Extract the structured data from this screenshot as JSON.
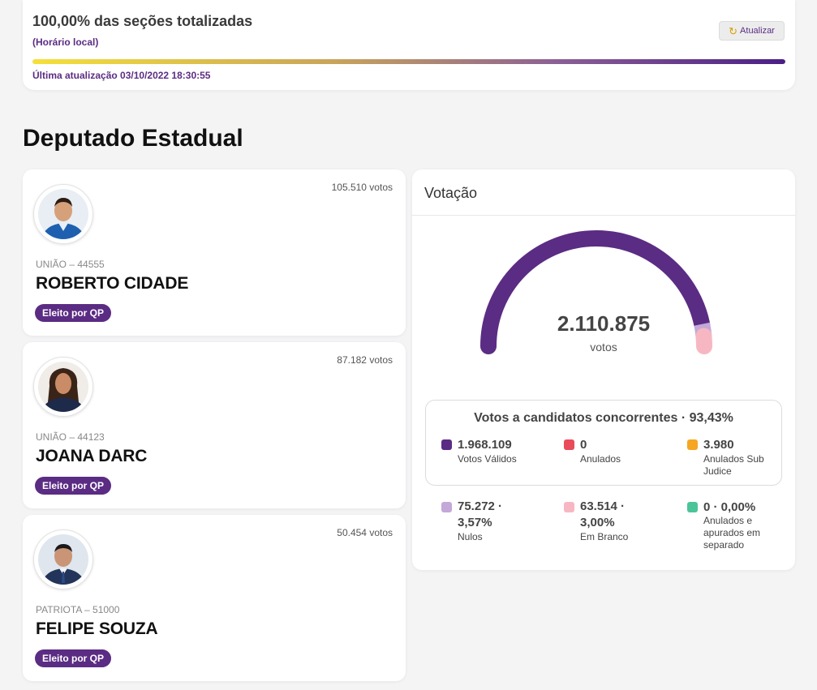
{
  "status": {
    "title": "100,00% das seções totalizadas",
    "subtitle": "(Horário local)",
    "refresh_label": "Atualizar",
    "progress_fraction": 1.0,
    "updated": "Última atualização 03/10/2022 18:30:55"
  },
  "section_title": "Deputado Estadual",
  "candidates": [
    {
      "votes": "105.510 votos",
      "party": "UNIÃO – 44555",
      "name": "ROBERTO CIDADE",
      "badge": "Eleito por QP"
    },
    {
      "votes": "87.182 votos",
      "party": "UNIÃO – 44123",
      "name": "JOANA DARC",
      "badge": "Eleito por QP"
    },
    {
      "votes": "50.454 votos",
      "party": "PATRIOTA – 51000",
      "name": "FELIPE SOUZA",
      "badge": "Eleito por QP"
    }
  ],
  "votacao": {
    "header": "Votação",
    "total": "2.110.875",
    "unit": "votos",
    "valid_title": "Votos a candidatos concorrentes · 93,43%",
    "valid_fraction": 0.9343,
    "nulos_fraction": 0.0357,
    "branco_fraction": 0.03,
    "stats": {
      "validos": {
        "value": "1.968.109",
        "label": "Votos Válidos",
        "color": "#5b2c83"
      },
      "anulados": {
        "value": "0",
        "label": "Anulados",
        "color": "#e94b5b"
      },
      "sub_judice": {
        "value": "3.980",
        "label": "Anulados Sub Judice",
        "color": "#f5a623"
      },
      "nulos": {
        "value": "75.272 · 3,57%",
        "label": "Nulos",
        "color": "#c4a8d8"
      },
      "branco": {
        "value": "63.514 · 3,00%",
        "label": "Em Branco",
        "color": "#f7b7c2"
      },
      "separado": {
        "value": "0 · 0,00%",
        "label": "Anulados e apurados em separado",
        "color": "#4cc49a"
      }
    }
  },
  "icons": {
    "refresh": "refresh-icon",
    "avatar": "person-photo-icon"
  }
}
